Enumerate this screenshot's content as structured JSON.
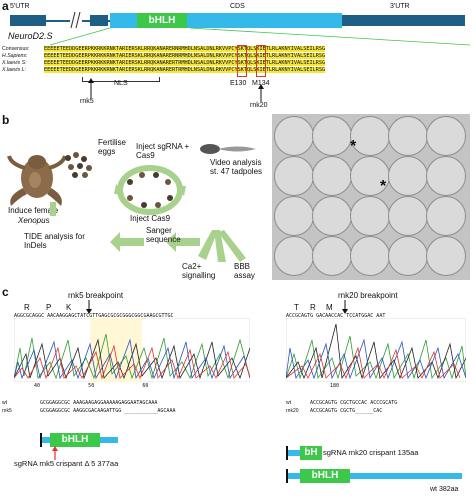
{
  "panel_a": {
    "letter": "a",
    "utr5": "5'UTR",
    "cds": "CDS",
    "utr3": "3'UTR",
    "domain": "bHLH",
    "gene": "NeuroD2.S",
    "alignment": {
      "rows": [
        {
          "label": "Consensus:",
          "seq": "EEEEETEEDDGEERPKKRKKRNKTARIERSKLRRQKANARERNRMHDLNSALDNLRKVVPCYSKTQLSKIETLRLAKNYIVALSEILRSG"
        },
        {
          "label": "H.Sapiens:",
          "seq": "EEEEETEEDDGEERPKKRKKRNKTARIERSKLRRQKANARERNRMHDLNSALDNLRKVVPCYSKTQLSKIETLRLAKNYIVALSEILRSG"
        },
        {
          "label": "X.laevis S:",
          "seq": "EEEEETEEDDGEERPKKRKKRNKTARIERSKLRRQKANARERTRMHDLNSALDNLRKVVPCYSKTQLSKIETLRLAKNYIVALSEILRSG"
        },
        {
          "label": "X.laevis L:",
          "seq": "EEEEETEEDDGEERPKKRKKRNKTARIERSKLRRQKANARERTRMHDLNSALDNLRKVVPCYSKTQLSKIETLRLAKNYIVALSEILRSG"
        }
      ],
      "nls": "NLS",
      "e130": "E130",
      "m134": "M134",
      "rnk5": "rnk5",
      "rnk20": "rnk20"
    }
  },
  "panel_b": {
    "letter": "b",
    "fertilise": "Fertilise eggs",
    "inject_sgrna": "Inject sgRNA + Cas9",
    "video": "Video analysis st. 47 tadpoles",
    "induce": "Induce female",
    "xenopus": "Xenopus",
    "inject_cas9": "Inject Cas9",
    "tide": "TIDE analysis for InDels",
    "sanger": "Sanger sequence",
    "ca": "Ca2+ signalling",
    "bbb": "BBB assay",
    "star": "*"
  },
  "panel_c": {
    "letter": "c",
    "left": {
      "residues": [
        "R",
        "P",
        "K"
      ],
      "breakpoint": "rnk5 breakpoint",
      "seq_top": "AGGCGCAGGC AACAAGGAGCTATCGTTGAGCGCGCGGGCGGCGAAGCGTTGC",
      "ruler": "40                50                60",
      "wt_label": "wt",
      "wt_seq": "GCGGAGGCGC AAAGAAGAGGAAAAAGAGGAATAGCAAA",
      "rnk5_label": "rnk5",
      "rnk5_seq": "GCGGAGGCGC AAGGCGACAAGATTGG ___________AGCAAA",
      "protein_label": "bHLH",
      "caption": "sgRNA rnk5 crispant  Δ 5 377aa"
    },
    "right": {
      "residues": [
        "T",
        "R",
        "M"
      ],
      "breakpoint": "rnk20 breakpoint",
      "seq_top": "ACCGCAGTG GACAACCAC TCCATGGAC AAT",
      "ruler": "180",
      "wt_label": "wt",
      "wt_seq": "ACCGCAGTG CGCTGCCAC ACCCGCATG",
      "rnk20_label": "rnk20",
      "rnk20_seq": "ACCGCAGTG CGCTG______CAC",
      "protein1_label": "bH",
      "caption1": "sgRNA rnk20 crispant 135aa",
      "protein2_label": "bHLH",
      "caption2": "wt 382aa"
    }
  },
  "colors": {
    "utr": "#1f5f86",
    "cds": "#34b9e8",
    "bhlh": "#3ec84a",
    "highlight": "#f6e63a",
    "arrow": "#a9d18e"
  }
}
